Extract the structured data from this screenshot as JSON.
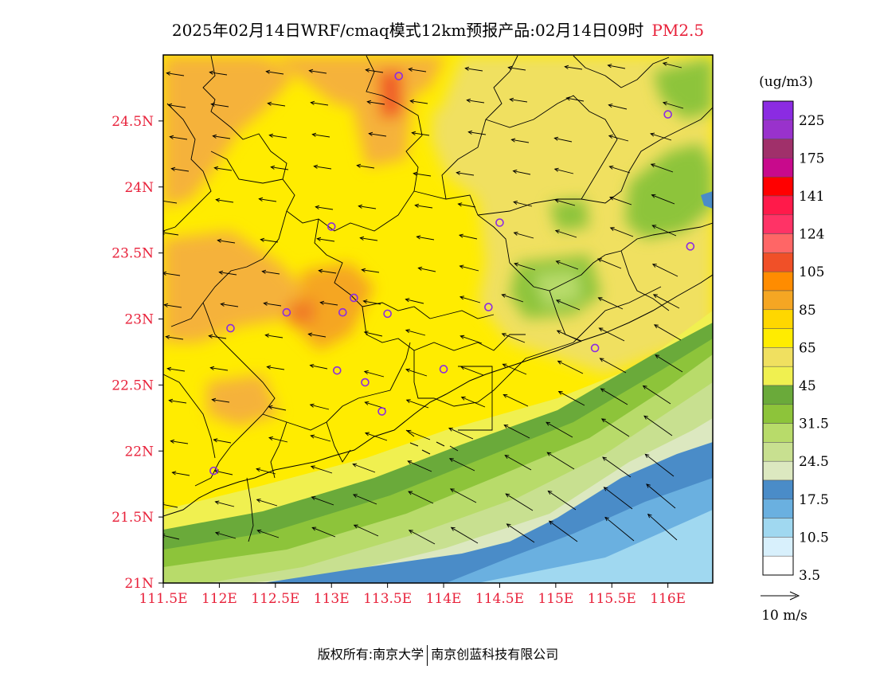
{
  "title": {
    "main": "2025年02月14日WRF/cmaq模式12km预报产品:02月14日09时",
    "species": "PM2.5"
  },
  "map": {
    "lat_labels": [
      "24.5N",
      "24N",
      "23.5N",
      "23N",
      "22.5N",
      "22N",
      "21.5N",
      "21N"
    ],
    "lon_labels": [
      "111.5E",
      "112E",
      "112.5E",
      "113E",
      "113.5E",
      "114E",
      "114.5E",
      "115E",
      "115.5E",
      "116E"
    ],
    "lat_values": [
      24.5,
      24,
      23.5,
      23,
      22.5,
      22,
      21.5,
      21
    ],
    "lon_values": [
      111.5,
      112,
      112.5,
      113,
      113.5,
      114,
      114.5,
      115,
      115.5,
      116
    ],
    "extent": {
      "lon": [
        111.5,
        116.4
      ],
      "lat": [
        21.0,
        25.0
      ]
    },
    "label_color": "#e8213a"
  },
  "stations": [
    {
      "lon": 113.6,
      "lat": 24.84
    },
    {
      "lon": 116.0,
      "lat": 24.55
    },
    {
      "lon": 114.5,
      "lat": 23.73
    },
    {
      "lon": 113.0,
      "lat": 23.7
    },
    {
      "lon": 116.2,
      "lat": 23.55
    },
    {
      "lon": 113.2,
      "lat": 23.16
    },
    {
      "lon": 114.4,
      "lat": 23.09
    },
    {
      "lon": 112.6,
      "lat": 23.05
    },
    {
      "lon": 113.1,
      "lat": 23.05
    },
    {
      "lon": 113.5,
      "lat": 23.04
    },
    {
      "lon": 112.1,
      "lat": 22.93
    },
    {
      "lon": 115.35,
      "lat": 22.78
    },
    {
      "lon": 114.0,
      "lat": 22.62
    },
    {
      "lon": 113.05,
      "lat": 22.61
    },
    {
      "lon": 113.3,
      "lat": 22.52
    },
    {
      "lon": 113.45,
      "lat": 22.3
    },
    {
      "lon": 111.95,
      "lat": 21.85
    }
  ],
  "legend": {
    "unit": "(ug/m3)",
    "labels": [
      "225",
      "175",
      "141",
      "124",
      "105",
      "85",
      "65",
      "45",
      "31.5",
      "24.5",
      "17.5",
      "10.5",
      "3.5"
    ],
    "colors": [
      "#8b2be2",
      "#9932cc",
      "#a0306a",
      "#c80a8c",
      "#ff0000",
      "#ff1a4a",
      "#ff3366",
      "#ff6666",
      "#f05028",
      "#ff8c00",
      "#f5a623",
      "#ffd700",
      "#ffec00",
      "#f0e060",
      "#f0f050",
      "#6aaa3a",
      "#8dc43a",
      "#b8db6a",
      "#c8e090",
      "#dce8c0",
      "#4a8cc8",
      "#6ab0e0",
      "#a0d8f0",
      "#d8f0fc",
      "#ffffff"
    ]
  },
  "wind_scale": {
    "label": "10 m/s"
  },
  "footer": {
    "left": "版权所有:南京大学",
    "right": "南京创蓝科技有限公司"
  }
}
